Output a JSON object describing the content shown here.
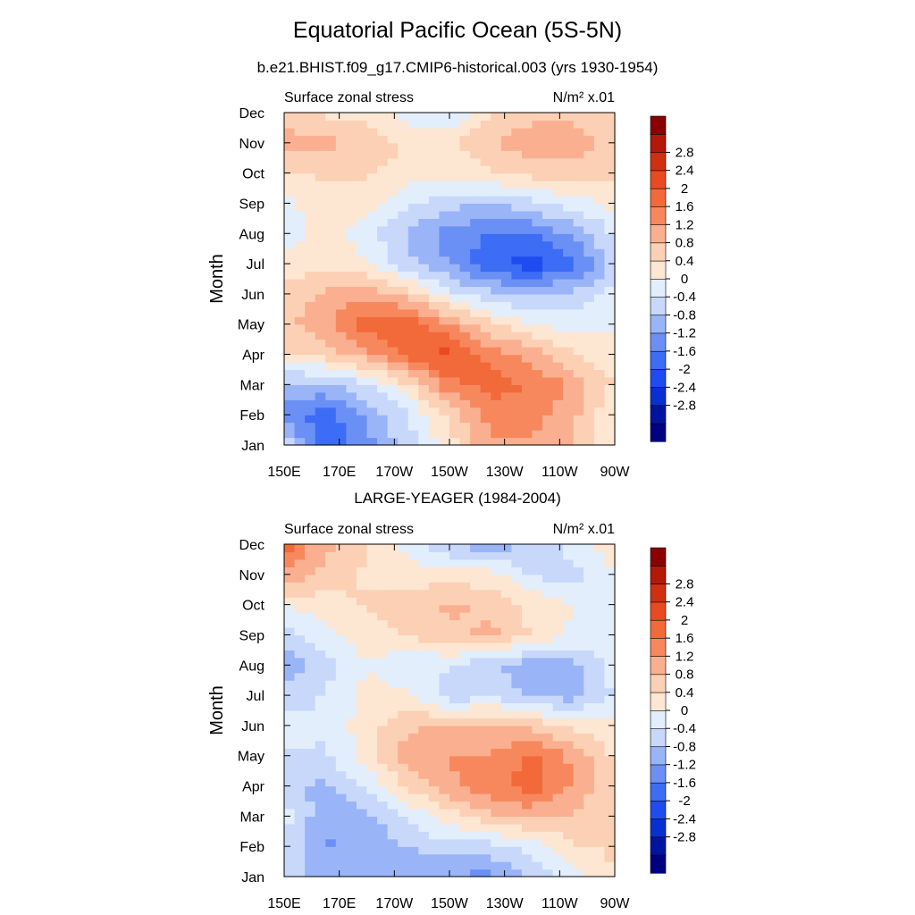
{
  "figure": {
    "title": "Equatorial Pacific Ocean (5S-5N)"
  },
  "colorbar": {
    "colors": [
      "#000080",
      "#0014a0",
      "#0a2fd0",
      "#1e4cf0",
      "#3d6cf5",
      "#6b90f5",
      "#9ab4f8",
      "#c8d8fb",
      "#e3eefc",
      "#fde6d2",
      "#fcd0b4",
      "#fab090",
      "#f7885e",
      "#f26a3a",
      "#ea4a20",
      "#d03010",
      "#b31808",
      "#8a0000"
    ],
    "labels": [
      "-2.8",
      "-2.4",
      "-2",
      "-1.6",
      "-1.2",
      "-0.8",
      "-0.4",
      "0",
      "0.4",
      "0.8",
      "1.2",
      "1.6",
      "2",
      "2.4",
      "2.8"
    ]
  },
  "chart_data": [
    {
      "type": "heatmap",
      "title": "b.e21.BHIST.f09_g17.CMIP6-historical.003 (yrs 1930-1954)",
      "left_label": "Surface zonal stress",
      "units_label": "N/m² x.01",
      "xlabel": "",
      "ylabel": "Month",
      "x": [
        "150E",
        "170E",
        "170W",
        "150W",
        "130W",
        "110W",
        "90W"
      ],
      "y": [
        "Jan",
        "Feb",
        "Mar",
        "Apr",
        "May",
        "Jun",
        "Jul",
        "Aug",
        "Sep",
        "Oct",
        "Nov",
        "Dec"
      ],
      "values": [
        [
          -0.4,
          -1.8,
          -1.2,
          -0.5,
          0.2,
          1.0,
          1.0,
          0.8,
          0.0
        ],
        [
          -1.2,
          -1.6,
          -1.0,
          -0.4,
          0.5,
          1.2,
          1.2,
          0.8,
          0.0
        ],
        [
          -0.8,
          -0.8,
          -0.4,
          0.3,
          1.3,
          1.6,
          1.4,
          1.0,
          0.3
        ],
        [
          0.3,
          0.5,
          0.9,
          1.6,
          1.9,
          1.3,
          0.9,
          0.4,
          0.1
        ],
        [
          0.6,
          1.0,
          1.6,
          1.8,
          1.1,
          0.4,
          0.0,
          -0.2,
          0.0
        ],
        [
          0.4,
          0.8,
          1.0,
          0.5,
          -0.2,
          -0.6,
          -0.8,
          -0.6,
          -0.2
        ],
        [
          0.2,
          0.3,
          0.0,
          -0.6,
          -1.1,
          -1.7,
          -2.0,
          -1.5,
          -0.6
        ],
        [
          -0.2,
          0.2,
          -0.2,
          -0.8,
          -1.2,
          -1.5,
          -1.4,
          -1.0,
          -0.3
        ],
        [
          -0.1,
          0.2,
          0.2,
          -0.3,
          -0.6,
          -0.7,
          -0.5,
          -0.2,
          0.1
        ],
        [
          0.3,
          0.4,
          0.4,
          0.2,
          0.1,
          0.3,
          0.5,
          0.6,
          0.5
        ],
        [
          0.9,
          0.8,
          0.6,
          0.3,
          0.3,
          0.7,
          0.9,
          0.9,
          0.6
        ],
        [
          0.5,
          0.3,
          0.2,
          -0.2,
          -0.4,
          0.4,
          0.6,
          0.6,
          0.4
        ]
      ],
      "clim": [
        -3.2,
        3.2
      ]
    },
    {
      "type": "heatmap",
      "title": "LARGE-YEAGER (1984-2004)",
      "left_label": "Surface zonal stress",
      "units_label": "N/m² x.01",
      "xlabel": "",
      "ylabel": "Month",
      "x": [
        "150E",
        "170E",
        "170W",
        "150W",
        "130W",
        "110W",
        "90W"
      ],
      "y": [
        "Jan",
        "Feb",
        "Mar",
        "Apr",
        "May",
        "Jun",
        "Jul",
        "Aug",
        "Sep",
        "Oct",
        "Nov",
        "Dec"
      ],
      "values": [
        [
          -0.5,
          -0.9,
          -0.8,
          -1.0,
          -1.1,
          -1.2,
          -0.6,
          -0.2,
          0.4
        ],
        [
          -0.4,
          -1.1,
          -1.0,
          -0.7,
          -0.5,
          -0.5,
          -0.2,
          0.3,
          0.4
        ],
        [
          -0.2,
          -1.0,
          -0.8,
          -0.3,
          0.2,
          0.6,
          0.8,
          0.7,
          0.4
        ],
        [
          -0.6,
          -0.8,
          -0.3,
          0.4,
          1.0,
          1.3,
          1.6,
          1.0,
          0.4
        ],
        [
          -0.4,
          -0.4,
          0.2,
          0.9,
          1.1,
          1.1,
          1.5,
          1.0,
          0.3
        ],
        [
          -0.2,
          -0.3,
          0.2,
          0.6,
          0.8,
          0.8,
          0.6,
          0.3,
          0.1
        ],
        [
          -0.6,
          -0.3,
          0.1,
          0.1,
          -0.6,
          -0.4,
          -0.8,
          -0.9,
          -0.3
        ],
        [
          -1.0,
          -0.5,
          0.0,
          -0.4,
          -0.3,
          -0.7,
          -0.9,
          -0.8,
          -0.2
        ],
        [
          -0.6,
          -0.1,
          0.2,
          0.4,
          0.6,
          0.8,
          0.3,
          -0.1,
          0.0
        ],
        [
          0.0,
          0.2,
          0.4,
          0.6,
          0.8,
          0.6,
          0.3,
          0.0,
          0.0
        ],
        [
          1.0,
          0.6,
          0.3,
          0.2,
          0.1,
          0.2,
          -0.4,
          -0.5,
          0.0
        ],
        [
          1.6,
          0.8,
          0.4,
          -0.2,
          -0.6,
          -1.0,
          -0.6,
          -0.2,
          0.2
        ]
      ],
      "clim": [
        -3.2,
        3.2
      ]
    }
  ]
}
